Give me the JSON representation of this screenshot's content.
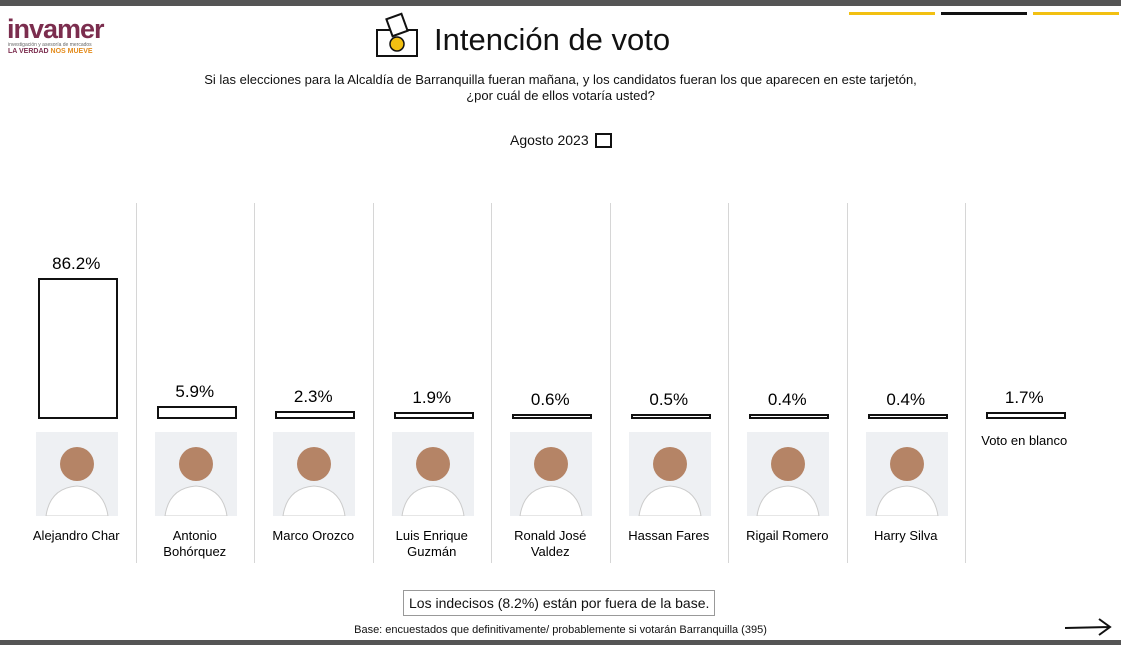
{
  "logo": {
    "brand": "invamer",
    "tagline": "investigación y asesoría de mercados",
    "slogan_a": "LA VERDAD",
    "slogan_b": "NOS MUEVE"
  },
  "chart_data": {
    "type": "bar",
    "title": "Intención de voto",
    "subtitle": [
      "Si las elecciones para la Alcaldía de Barranquilla fueran mañana, y los candidatos fueran los que aparecen en este tarjetón,",
      "¿por cuál de ellos votaría usted?"
    ],
    "period": "Agosto 2023",
    "categories": [
      "Alejandro Char",
      "Antonio Bohórquez",
      "Marco Orozco",
      "Luis Enrique Guzmán",
      "Ronald José Valdez",
      "Hassan Fares",
      "Rigail Romero",
      "Harry Silva",
      "Voto en blanco"
    ],
    "values": [
      86.2,
      5.9,
      2.3,
      1.9,
      0.6,
      0.5,
      0.4,
      0.4,
      1.7
    ],
    "value_labels": [
      "86.2%",
      "5.9%",
      "2.3%",
      "1.9%",
      "0.6%",
      "0.5%",
      "0.4%",
      "0.4%",
      "1.7%"
    ],
    "color": "#ffffff",
    "note": "Los indecisos (8.2%) están por fuera de la base.",
    "footnote": "Base: encuestados que definitivamente/ probablemente si votarán Barranquilla (395)"
  }
}
